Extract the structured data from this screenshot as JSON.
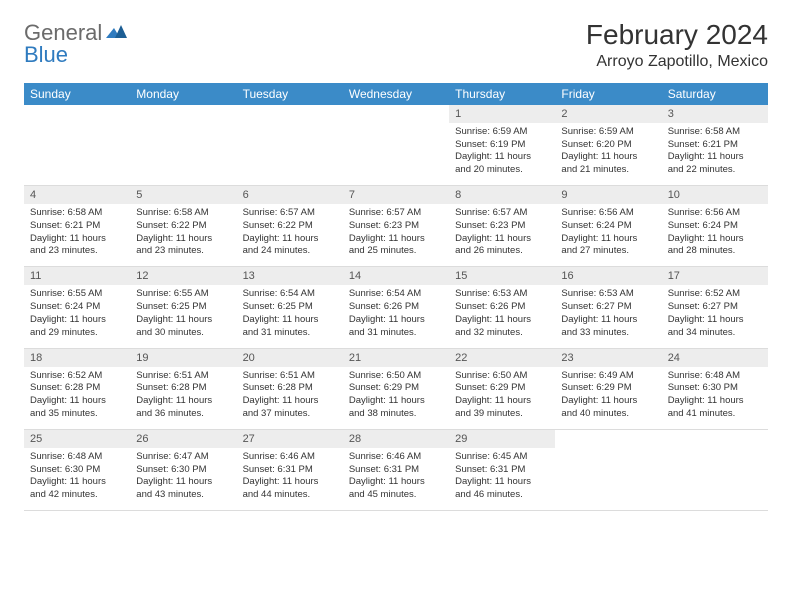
{
  "logo": {
    "general": "General",
    "blue": "Blue"
  },
  "title": "February 2024",
  "location": "Arroyo Zapotillo, Mexico",
  "colors": {
    "header_bg": "#3b8bc8",
    "header_text": "#ffffff",
    "daynum_bg": "#ededed",
    "border": "#dcdcdc",
    "logo_gray": "#6b6b6b",
    "logo_blue": "#2f7bbf"
  },
  "dow": [
    "Sunday",
    "Monday",
    "Tuesday",
    "Wednesday",
    "Thursday",
    "Friday",
    "Saturday"
  ],
  "weeks": [
    [
      {
        "n": "",
        "l1": "",
        "l2": "",
        "l3": "",
        "l4": ""
      },
      {
        "n": "",
        "l1": "",
        "l2": "",
        "l3": "",
        "l4": ""
      },
      {
        "n": "",
        "l1": "",
        "l2": "",
        "l3": "",
        "l4": ""
      },
      {
        "n": "",
        "l1": "",
        "l2": "",
        "l3": "",
        "l4": ""
      },
      {
        "n": "1",
        "l1": "Sunrise: 6:59 AM",
        "l2": "Sunset: 6:19 PM",
        "l3": "Daylight: 11 hours",
        "l4": "and 20 minutes."
      },
      {
        "n": "2",
        "l1": "Sunrise: 6:59 AM",
        "l2": "Sunset: 6:20 PM",
        "l3": "Daylight: 11 hours",
        "l4": "and 21 minutes."
      },
      {
        "n": "3",
        "l1": "Sunrise: 6:58 AM",
        "l2": "Sunset: 6:21 PM",
        "l3": "Daylight: 11 hours",
        "l4": "and 22 minutes."
      }
    ],
    [
      {
        "n": "4",
        "l1": "Sunrise: 6:58 AM",
        "l2": "Sunset: 6:21 PM",
        "l3": "Daylight: 11 hours",
        "l4": "and 23 minutes."
      },
      {
        "n": "5",
        "l1": "Sunrise: 6:58 AM",
        "l2": "Sunset: 6:22 PM",
        "l3": "Daylight: 11 hours",
        "l4": "and 23 minutes."
      },
      {
        "n": "6",
        "l1": "Sunrise: 6:57 AM",
        "l2": "Sunset: 6:22 PM",
        "l3": "Daylight: 11 hours",
        "l4": "and 24 minutes."
      },
      {
        "n": "7",
        "l1": "Sunrise: 6:57 AM",
        "l2": "Sunset: 6:23 PM",
        "l3": "Daylight: 11 hours",
        "l4": "and 25 minutes."
      },
      {
        "n": "8",
        "l1": "Sunrise: 6:57 AM",
        "l2": "Sunset: 6:23 PM",
        "l3": "Daylight: 11 hours",
        "l4": "and 26 minutes."
      },
      {
        "n": "9",
        "l1": "Sunrise: 6:56 AM",
        "l2": "Sunset: 6:24 PM",
        "l3": "Daylight: 11 hours",
        "l4": "and 27 minutes."
      },
      {
        "n": "10",
        "l1": "Sunrise: 6:56 AM",
        "l2": "Sunset: 6:24 PM",
        "l3": "Daylight: 11 hours",
        "l4": "and 28 minutes."
      }
    ],
    [
      {
        "n": "11",
        "l1": "Sunrise: 6:55 AM",
        "l2": "Sunset: 6:24 PM",
        "l3": "Daylight: 11 hours",
        "l4": "and 29 minutes."
      },
      {
        "n": "12",
        "l1": "Sunrise: 6:55 AM",
        "l2": "Sunset: 6:25 PM",
        "l3": "Daylight: 11 hours",
        "l4": "and 30 minutes."
      },
      {
        "n": "13",
        "l1": "Sunrise: 6:54 AM",
        "l2": "Sunset: 6:25 PM",
        "l3": "Daylight: 11 hours",
        "l4": "and 31 minutes."
      },
      {
        "n": "14",
        "l1": "Sunrise: 6:54 AM",
        "l2": "Sunset: 6:26 PM",
        "l3": "Daylight: 11 hours",
        "l4": "and 31 minutes."
      },
      {
        "n": "15",
        "l1": "Sunrise: 6:53 AM",
        "l2": "Sunset: 6:26 PM",
        "l3": "Daylight: 11 hours",
        "l4": "and 32 minutes."
      },
      {
        "n": "16",
        "l1": "Sunrise: 6:53 AM",
        "l2": "Sunset: 6:27 PM",
        "l3": "Daylight: 11 hours",
        "l4": "and 33 minutes."
      },
      {
        "n": "17",
        "l1": "Sunrise: 6:52 AM",
        "l2": "Sunset: 6:27 PM",
        "l3": "Daylight: 11 hours",
        "l4": "and 34 minutes."
      }
    ],
    [
      {
        "n": "18",
        "l1": "Sunrise: 6:52 AM",
        "l2": "Sunset: 6:28 PM",
        "l3": "Daylight: 11 hours",
        "l4": "and 35 minutes."
      },
      {
        "n": "19",
        "l1": "Sunrise: 6:51 AM",
        "l2": "Sunset: 6:28 PM",
        "l3": "Daylight: 11 hours",
        "l4": "and 36 minutes."
      },
      {
        "n": "20",
        "l1": "Sunrise: 6:51 AM",
        "l2": "Sunset: 6:28 PM",
        "l3": "Daylight: 11 hours",
        "l4": "and 37 minutes."
      },
      {
        "n": "21",
        "l1": "Sunrise: 6:50 AM",
        "l2": "Sunset: 6:29 PM",
        "l3": "Daylight: 11 hours",
        "l4": "and 38 minutes."
      },
      {
        "n": "22",
        "l1": "Sunrise: 6:50 AM",
        "l2": "Sunset: 6:29 PM",
        "l3": "Daylight: 11 hours",
        "l4": "and 39 minutes."
      },
      {
        "n": "23",
        "l1": "Sunrise: 6:49 AM",
        "l2": "Sunset: 6:29 PM",
        "l3": "Daylight: 11 hours",
        "l4": "and 40 minutes."
      },
      {
        "n": "24",
        "l1": "Sunrise: 6:48 AM",
        "l2": "Sunset: 6:30 PM",
        "l3": "Daylight: 11 hours",
        "l4": "and 41 minutes."
      }
    ],
    [
      {
        "n": "25",
        "l1": "Sunrise: 6:48 AM",
        "l2": "Sunset: 6:30 PM",
        "l3": "Daylight: 11 hours",
        "l4": "and 42 minutes."
      },
      {
        "n": "26",
        "l1": "Sunrise: 6:47 AM",
        "l2": "Sunset: 6:30 PM",
        "l3": "Daylight: 11 hours",
        "l4": "and 43 minutes."
      },
      {
        "n": "27",
        "l1": "Sunrise: 6:46 AM",
        "l2": "Sunset: 6:31 PM",
        "l3": "Daylight: 11 hours",
        "l4": "and 44 minutes."
      },
      {
        "n": "28",
        "l1": "Sunrise: 6:46 AM",
        "l2": "Sunset: 6:31 PM",
        "l3": "Daylight: 11 hours",
        "l4": "and 45 minutes."
      },
      {
        "n": "29",
        "l1": "Sunrise: 6:45 AM",
        "l2": "Sunset: 6:31 PM",
        "l3": "Daylight: 11 hours",
        "l4": "and 46 minutes."
      },
      {
        "n": "",
        "l1": "",
        "l2": "",
        "l3": "",
        "l4": ""
      },
      {
        "n": "",
        "l1": "",
        "l2": "",
        "l3": "",
        "l4": ""
      }
    ]
  ]
}
